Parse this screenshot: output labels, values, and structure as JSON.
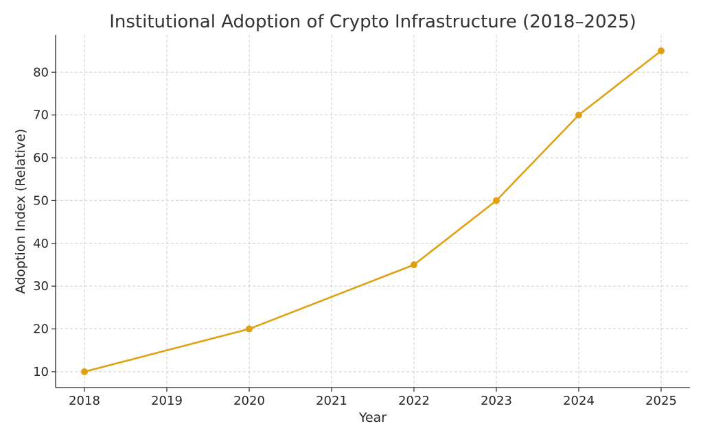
{
  "chart_data": {
    "type": "line",
    "title": "Institutional Adoption of Crypto Infrastructure (2018–2025)",
    "xlabel": "Year",
    "ylabel": "Adoption Index (Relative)",
    "x_ticks": [
      "2018",
      "2019",
      "2020",
      "2021",
      "2022",
      "2023",
      "2024",
      "2025"
    ],
    "y_ticks": [
      10,
      20,
      30,
      40,
      50,
      60,
      70,
      80
    ],
    "xlim": [
      2017.65,
      2025.35
    ],
    "ylim": [
      6.3,
      88.7
    ],
    "grid": true,
    "series": [
      {
        "x": [
          2018,
          2020,
          2022,
          2023,
          2024,
          2025
        ],
        "y": [
          10,
          20,
          35,
          50,
          70,
          85
        ],
        "color": "#e0a011"
      }
    ]
  }
}
